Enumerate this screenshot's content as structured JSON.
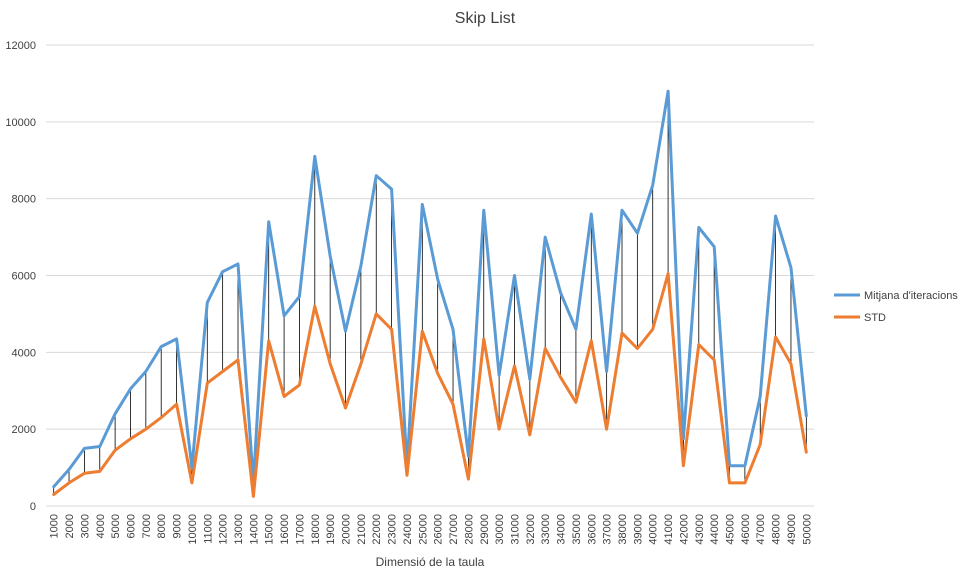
{
  "chart_data": {
    "type": "line",
    "title": "Skip List",
    "xlabel": "Dimensió de la taula",
    "ylabel": "",
    "ylim": [
      0,
      12000
    ],
    "yticks": [
      0,
      2000,
      4000,
      6000,
      8000,
      10000,
      12000
    ],
    "grid": true,
    "legend": "right",
    "drop_lines": true,
    "categories": [
      "1000",
      "2000",
      "3000",
      "4000",
      "5000",
      "6000",
      "7000",
      "8000",
      "9000",
      "10000",
      "11000",
      "12000",
      "13000",
      "14000",
      "15000",
      "16000",
      "17000",
      "18000",
      "19000",
      "20000",
      "21000",
      "22000",
      "23000",
      "24000",
      "25000",
      "26000",
      "27000",
      "28000",
      "29000",
      "30000",
      "31000",
      "32000",
      "33000",
      "34000",
      "35000",
      "36000",
      "37000",
      "38000",
      "39000",
      "40000",
      "41000",
      "42000",
      "43000",
      "44000",
      "45000",
      "46000",
      "47000",
      "48000",
      "49000",
      "50000"
    ],
    "series": [
      {
        "name": "Mitjana d'iteracions",
        "color": "#5b9bd5",
        "values": [
          500,
          950,
          1500,
          1550,
          2400,
          3050,
          3500,
          4150,
          4350,
          1000,
          5300,
          6100,
          6300,
          600,
          7400,
          4950,
          5450,
          9100,
          6500,
          4550,
          6250,
          8600,
          8250,
          1000,
          7850,
          5900,
          4600,
          1300,
          7700,
          3400,
          6000,
          3300,
          7000,
          5550,
          4600,
          7600,
          3500,
          7700,
          7100,
          8350,
          10800,
          1750,
          7250,
          6750,
          1050,
          1050,
          2850,
          7550,
          6200,
          2350
        ]
      },
      {
        "name": "STD",
        "color": "#ed7d31",
        "values": [
          300,
          600,
          850,
          900,
          1450,
          1750,
          2000,
          2300,
          2650,
          600,
          3200,
          3500,
          3800,
          250,
          4300,
          2850,
          3150,
          5200,
          3700,
          2550,
          3700,
          5000,
          4600,
          800,
          4550,
          3450,
          2650,
          700,
          4350,
          2000,
          3650,
          1850,
          4100,
          3350,
          2700,
          4300,
          2000,
          4500,
          4100,
          4600,
          6050,
          1050,
          4200,
          3800,
          600,
          600,
          1600,
          4400,
          3700,
          1400
        ]
      }
    ]
  }
}
